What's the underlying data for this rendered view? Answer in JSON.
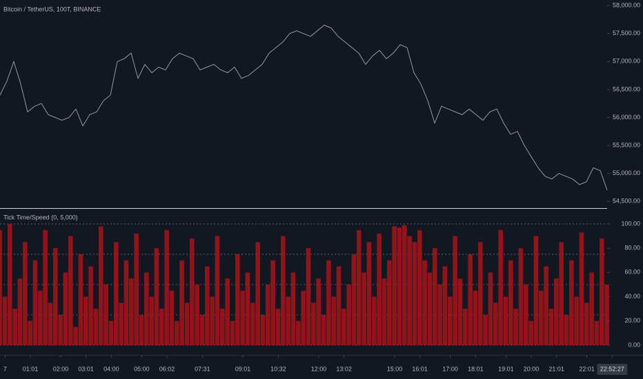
{
  "chart_data": [
    {
      "type": "line",
      "title": "Bitcoin / TetherUS, 100T, BINANCE",
      "color": "#9598a1",
      "values": [
        56400,
        56650,
        57000,
        56600,
        56100,
        56200,
        56250,
        56050,
        56000,
        55950,
        56000,
        56150,
        55850,
        56050,
        56100,
        56300,
        56400,
        57000,
        57050,
        57150,
        56700,
        56950,
        56800,
        56900,
        56850,
        57050,
        57150,
        57100,
        57050,
        56850,
        56900,
        56950,
        56850,
        56800,
        56900,
        56700,
        56750,
        56850,
        56950,
        57150,
        57250,
        57350,
        57500,
        57550,
        57500,
        57450,
        57550,
        57650,
        57600,
        57450,
        57350,
        57250,
        57150,
        56950,
        57100,
        57200,
        57050,
        57150,
        57300,
        57250,
        56800,
        56600,
        56300,
        55900,
        56200,
        56150,
        56100,
        56050,
        56150,
        56050,
        55950,
        56100,
        56150,
        55900,
        55700,
        55750,
        55500,
        55300,
        55100,
        54950,
        54900,
        55000,
        54950,
        54900,
        54800,
        54850,
        55100,
        55050,
        54700
      ],
      "xlim": [
        0,
        88
      ],
      "ylim": [
        54380,
        58100
      ],
      "yticks": [
        {
          "value": 54500,
          "label": "54,500.00"
        },
        {
          "value": 55000,
          "label": "55,000.00"
        },
        {
          "value": 55500,
          "label": "55,500.00"
        },
        {
          "value": 56000,
          "label": "56,000.00"
        },
        {
          "value": 56500,
          "label": "56,500.00"
        },
        {
          "value": 57000,
          "label": "57,000.00"
        },
        {
          "value": 57500,
          "label": "57,500.00"
        },
        {
          "value": 58000,
          "label": "58,000.00"
        }
      ]
    },
    {
      "type": "bar",
      "title": "Tick Time/Speed (0, 5,000)",
      "color": "#a8141a",
      "values": [
        95,
        40,
        100,
        30,
        55,
        85,
        20,
        70,
        45,
        95,
        35,
        80,
        25,
        60,
        90,
        15,
        75,
        40,
        65,
        30,
        98,
        50,
        20,
        85,
        35,
        70,
        55,
        92,
        25,
        60,
        40,
        80,
        30,
        95,
        45,
        20,
        70,
        35,
        88,
        50,
        25,
        65,
        40,
        90,
        30,
        55,
        20,
        75,
        45,
        60,
        35,
        85,
        25,
        50,
        70,
        30,
        90,
        40,
        60,
        20,
        45,
        80,
        35,
        55,
        25,
        70,
        40,
        65,
        30,
        50,
        75,
        95,
        60,
        85,
        40,
        92,
        55,
        70,
        98,
        97,
        99,
        90,
        85,
        95,
        70,
        60,
        80,
        50,
        65,
        40,
        90,
        55,
        30,
        75,
        45,
        85,
        25,
        60,
        35,
        95,
        40,
        70,
        30,
        80,
        50,
        20,
        90,
        45,
        65,
        30,
        55,
        85,
        25,
        70,
        40,
        93,
        35,
        60,
        20,
        88,
        50
      ],
      "xlim": [
        0,
        120
      ],
      "ylim": [
        -8,
        112.5
      ],
      "yticks": [
        {
          "value": 0,
          "label": "0.00"
        },
        {
          "value": 20,
          "label": "20.00"
        },
        {
          "value": 40,
          "label": "40.00"
        },
        {
          "value": 60,
          "label": "60.00"
        },
        {
          "value": 80,
          "label": "80.00"
        },
        {
          "value": 100,
          "label": "100.00"
        }
      ],
      "hlines": [
        0,
        25,
        50,
        75,
        100
      ],
      "xticks": [
        {
          "value": 1,
          "label": "7"
        },
        {
          "value": 6,
          "label": "01:01"
        },
        {
          "value": 12,
          "label": "02:00"
        },
        {
          "value": 17,
          "label": "03:01"
        },
        {
          "value": 22,
          "label": "04:00"
        },
        {
          "value": 28,
          "label": "05:00"
        },
        {
          "value": 33,
          "label": "06:02"
        },
        {
          "value": 40,
          "label": "07:31"
        },
        {
          "value": 48,
          "label": "09:01"
        },
        {
          "value": 55,
          "label": "10:32"
        },
        {
          "value": 63,
          "label": "12:00"
        },
        {
          "value": 68,
          "label": "13:02"
        },
        {
          "value": 78,
          "label": "15:00"
        },
        {
          "value": 83,
          "label": "16:01"
        },
        {
          "value": 89,
          "label": "17:00"
        },
        {
          "value": 94,
          "label": "18:01"
        },
        {
          "value": 100,
          "label": "19:01"
        },
        {
          "value": 105,
          "label": "20:00"
        },
        {
          "value": 110,
          "label": "21:01"
        },
        {
          "value": 116,
          "label": "22:01"
        },
        {
          "value": 121,
          "label": "22:52:27"
        }
      ]
    }
  ]
}
